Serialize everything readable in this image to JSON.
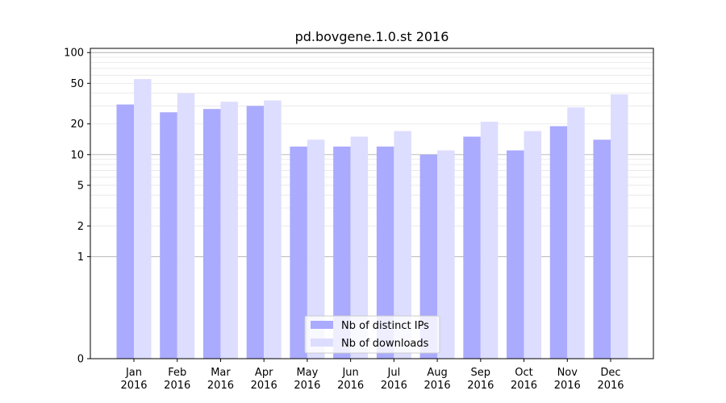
{
  "chart_data": {
    "type": "bar",
    "title": "pd.bovgene.1.0.st 2016",
    "xlabel": "",
    "ylabel": "",
    "y_scale": "symlog",
    "ylim": [
      0,
      110
    ],
    "y_ticks": [
      0,
      1,
      2,
      5,
      10,
      20,
      50,
      100
    ],
    "y_tick_labels": [
      "0",
      "1",
      "2",
      "5",
      "10",
      "20",
      "50",
      "100"
    ],
    "grid": true,
    "legend_position": "bottom-center",
    "categories": [
      [
        "Jan",
        "2016"
      ],
      [
        "Feb",
        "2016"
      ],
      [
        "Mar",
        "2016"
      ],
      [
        "Apr",
        "2016"
      ],
      [
        "May",
        "2016"
      ],
      [
        "Jun",
        "2016"
      ],
      [
        "Jul",
        "2016"
      ],
      [
        "Aug",
        "2016"
      ],
      [
        "Sep",
        "2016"
      ],
      [
        "Oct",
        "2016"
      ],
      [
        "Nov",
        "2016"
      ],
      [
        "Dec",
        "2016"
      ]
    ],
    "series": [
      {
        "name": "Nb of distinct IPs",
        "color": "#aaaaff",
        "values": [
          31,
          26,
          28,
          30,
          12,
          12,
          12,
          10,
          15,
          11,
          19,
          14
        ]
      },
      {
        "name": "Nb of downloads",
        "color": "#ddddff",
        "values": [
          55,
          40,
          33,
          34,
          14,
          15,
          17,
          11,
          21,
          17,
          29,
          39
        ]
      }
    ]
  }
}
